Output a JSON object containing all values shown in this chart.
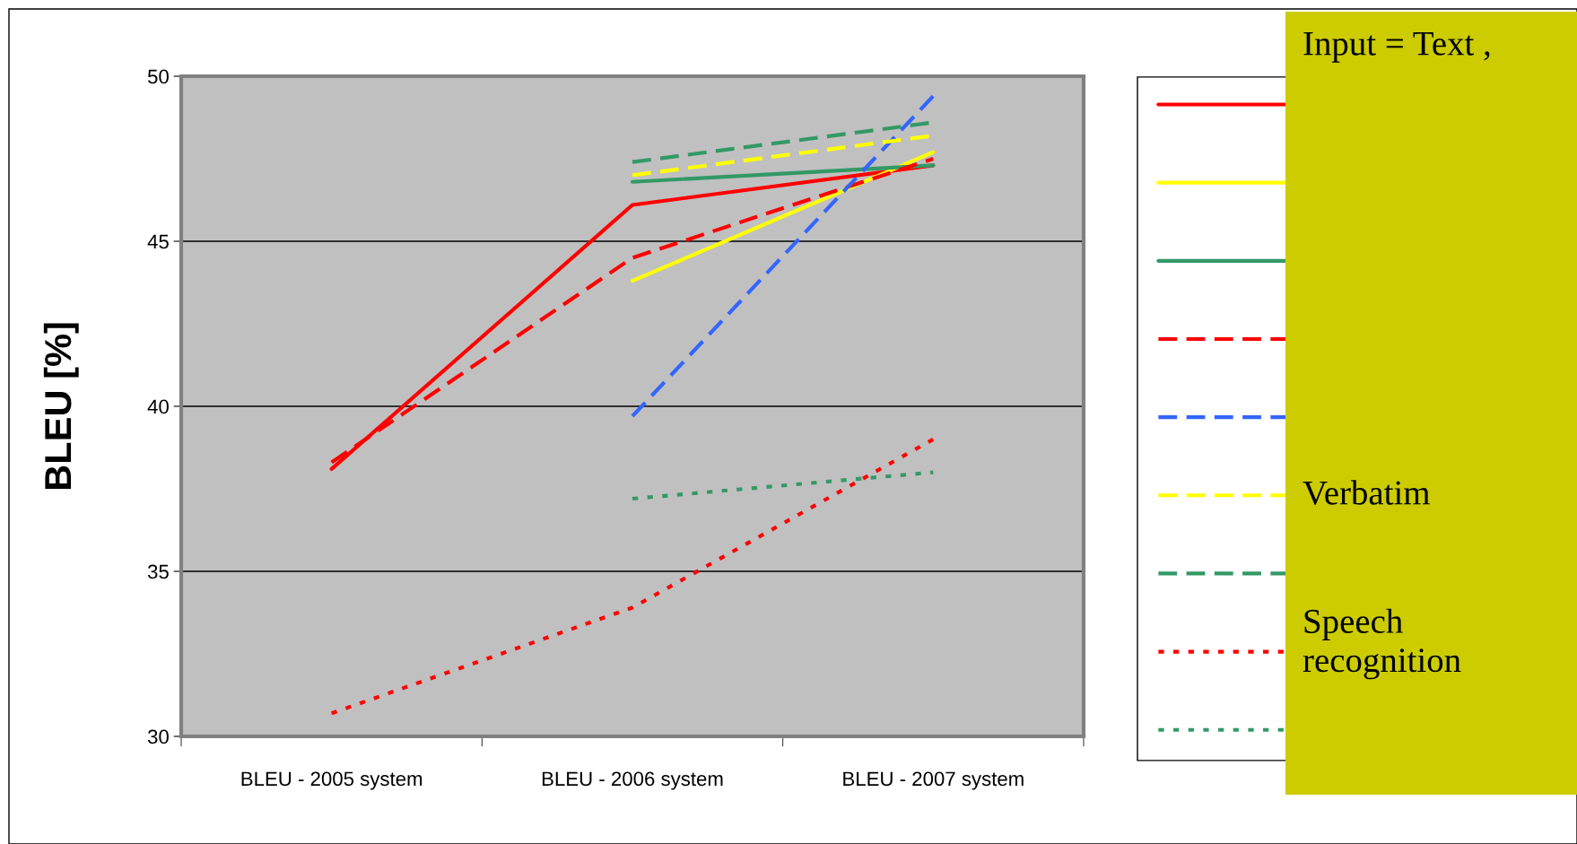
{
  "chart_data": {
    "type": "line",
    "ylabel": "BLEU [%]",
    "categories": [
      "BLEU - 2005 system",
      "BLEU - 2006 system",
      "BLEU - 2007 system"
    ],
    "ylim": [
      30,
      50
    ],
    "yticks": [
      30,
      35,
      40,
      45,
      50
    ],
    "grid": "y",
    "marker": "none",
    "series": [
      {
        "color": "#ff0000",
        "line_style": "solid",
        "values": [
          38.1,
          46.1,
          47.3
        ]
      },
      {
        "color": "#ffff00",
        "line_style": "solid",
        "values": [
          null,
          43.8,
          47.7
        ]
      },
      {
        "color": "#339966",
        "line_style": "solid",
        "values": [
          null,
          46.8,
          47.3
        ]
      },
      {
        "color": "#ff0000",
        "line_style": "dashed",
        "values": [
          38.3,
          44.5,
          47.5
        ]
      },
      {
        "color": "#3366ff",
        "line_style": "dashed",
        "values": [
          null,
          39.7,
          49.4
        ]
      },
      {
        "color": "#ffff00",
        "line_style": "dashed",
        "values": [
          null,
          47.0,
          48.2
        ]
      },
      {
        "color": "#339966",
        "line_style": "dashed",
        "values": [
          null,
          47.4,
          48.6
        ]
      },
      {
        "color": "#ff0000",
        "line_style": "dotted",
        "values": [
          30.7,
          33.9,
          39.0
        ]
      },
      {
        "color": "#339966",
        "line_style": "dotted",
        "values": [
          null,
          37.2,
          38.0
        ]
      }
    ],
    "annotations": [
      "Input = Text ,",
      "Verbatim",
      "Speech\nrecognition"
    ]
  }
}
